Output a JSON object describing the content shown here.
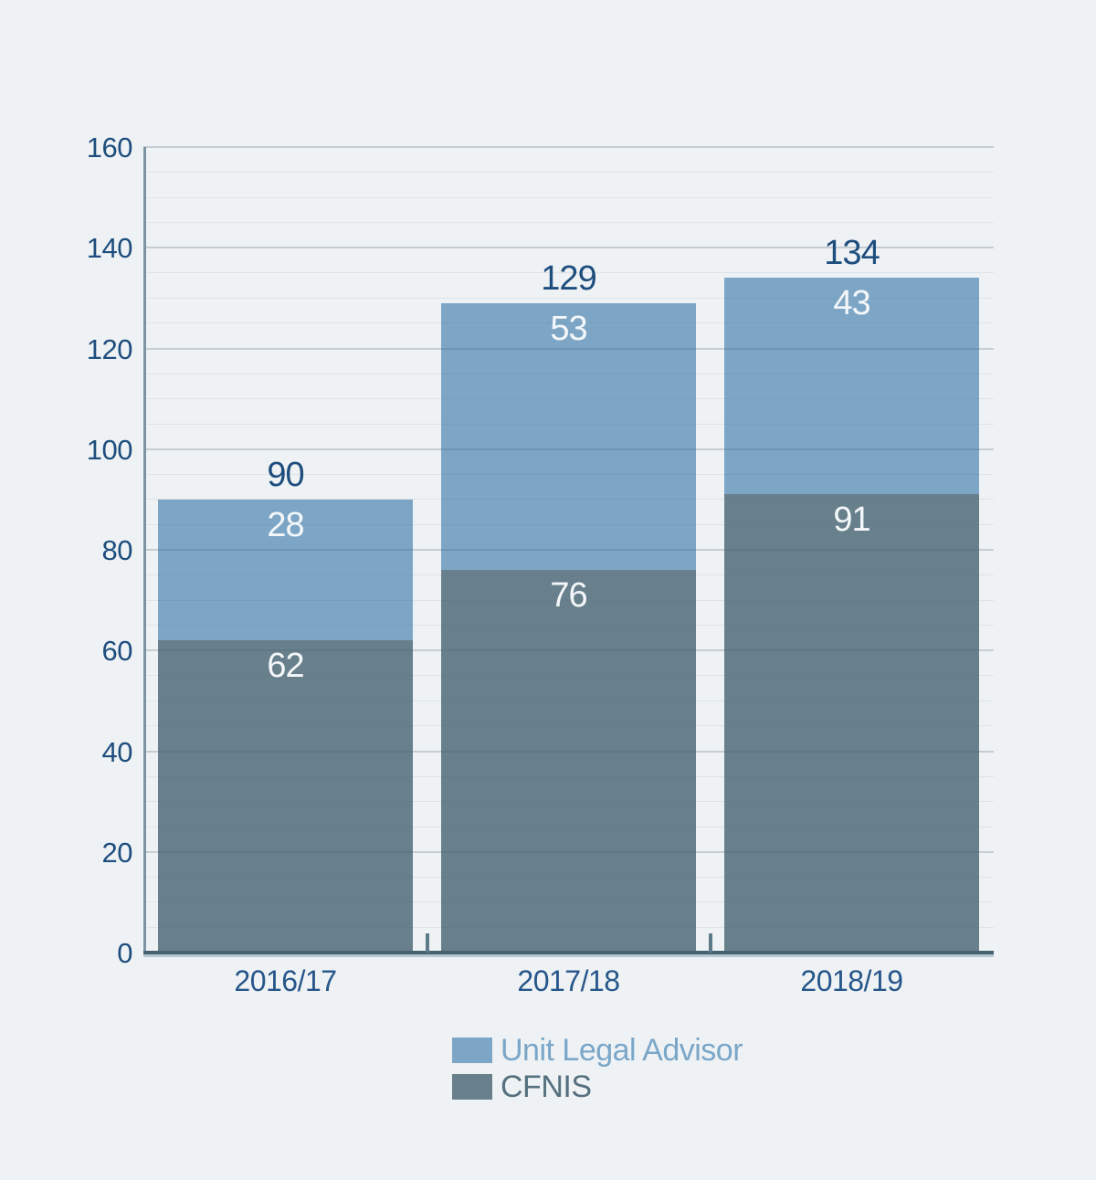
{
  "chart_data": {
    "type": "bar",
    "stacked": true,
    "title": "",
    "xlabel": "",
    "ylabel": "",
    "categories": [
      "2016/17",
      "2017/18",
      "2018/19"
    ],
    "series": [
      {
        "name": "Unit Legal Advisor",
        "color": "#7da6c6",
        "values": [
          28,
          53,
          43
        ]
      },
      {
        "name": "CFNIS",
        "color": "#68808c",
        "values": [
          62,
          76,
          91
        ]
      }
    ],
    "stack_order_bottom_to_top": [
      "CFNIS",
      "Unit Legal Advisor"
    ],
    "totals": [
      90,
      129,
      134
    ],
    "ylim": [
      0,
      160
    ],
    "ytick_step": 20,
    "yticks": [
      0,
      20,
      40,
      60,
      80,
      100,
      120,
      140,
      160
    ],
    "minor_grid_step": 5,
    "grid": "on",
    "legend_position": "bottom-center"
  },
  "legend": {
    "items": [
      {
        "label": "Unit Legal Advisor",
        "swatch_color": "#7da6c6",
        "text_color": "#7aa6c8"
      },
      {
        "label": "CFNIS",
        "swatch_color": "#68808c",
        "text_color": "#55707e"
      }
    ]
  },
  "colors": {
    "background": "#eff2f4",
    "series_light_blue": "#7da6c6",
    "series_dark_slate": "#68808c",
    "value_text_dark": "#1e4e7e",
    "value_text_light": "#f4f7f9",
    "axis_text": "#26568a",
    "y_axis_line": "#7b95a2",
    "x_axis_line_dark": "#46616f",
    "x_axis_line_light": "#b6c7d1"
  }
}
